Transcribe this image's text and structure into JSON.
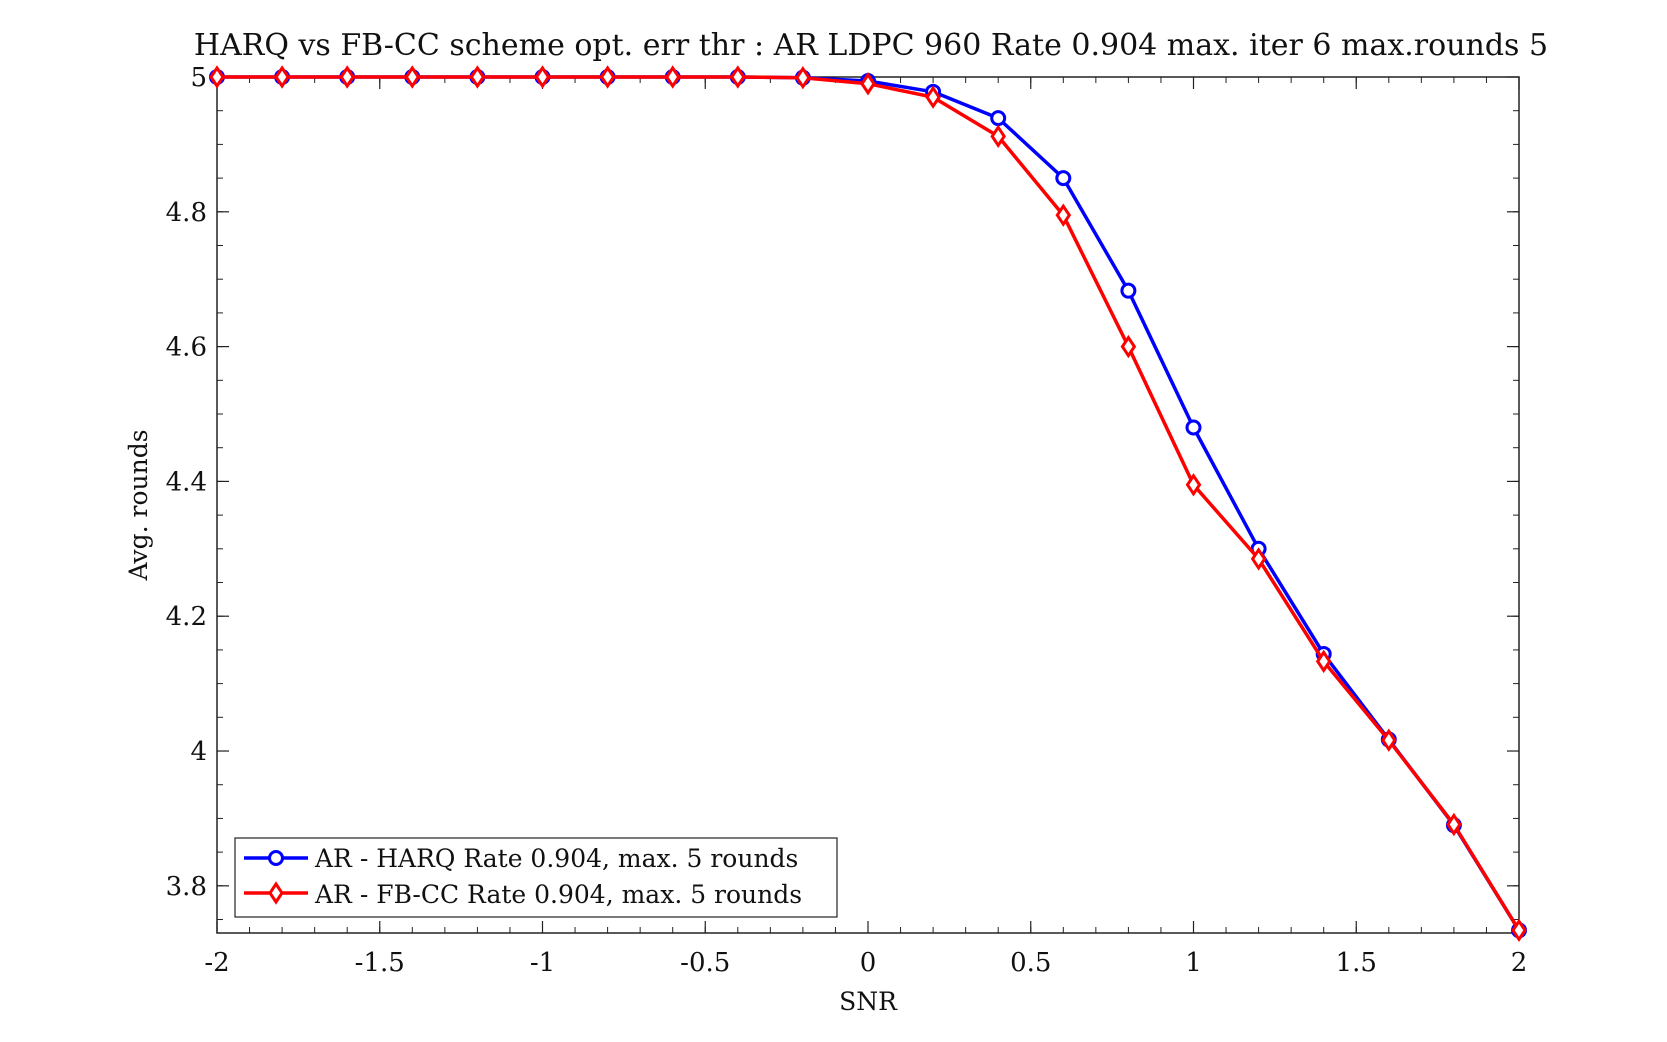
{
  "chart_data": {
    "type": "line",
    "title": "HARQ vs FB-CC scheme opt. err thr : AR LDPC 960 Rate 0.904 max. iter 6 max.rounds 5",
    "xlabel": "SNR",
    "ylabel": "Avg. rounds",
    "xlim": [
      -2,
      2
    ],
    "ylim": [
      3.73,
      5
    ],
    "x_ticks": [
      -2,
      -1.5,
      -1,
      -0.5,
      0,
      0.5,
      1,
      1.5,
      2
    ],
    "x_tick_labels": [
      "-2",
      "-1.5",
      "-1",
      "-0.5",
      "0",
      "0.5",
      "1",
      "1.5",
      "2"
    ],
    "y_ticks": [
      3.8,
      4,
      4.2,
      4.4,
      4.6,
      4.8,
      5
    ],
    "y_tick_labels": [
      "3.8",
      "4",
      "4.2",
      "4.4",
      "4.6",
      "4.8",
      "5"
    ],
    "grid": false,
    "legend_position": "bottom-left",
    "x": [
      -2,
      -1.8,
      -1.6,
      -1.4,
      -1.2,
      -1,
      -0.8,
      -0.6,
      -0.4,
      -0.2,
      0,
      0.2,
      0.4,
      0.6,
      0.8,
      1,
      1.2,
      1.4,
      1.6,
      1.8,
      2
    ],
    "series": [
      {
        "name": "AR - HARQ Rate 0.904, max. 5 rounds",
        "color": "#0000ff",
        "marker": "circle",
        "values": [
          5,
          5,
          5,
          5,
          5,
          5,
          5,
          5,
          5,
          4.999,
          4.994,
          4.978,
          4.939,
          4.85,
          4.683,
          4.48,
          4.3,
          4.144,
          4.017,
          3.89,
          3.734
        ]
      },
      {
        "name": "AR - FB-CC Rate 0.904, max. 5 rounds",
        "color": "#ff0000",
        "marker": "diamond",
        "values": [
          5,
          5,
          5,
          5,
          5,
          5,
          5,
          5,
          5,
          4.999,
          4.99,
          4.97,
          4.912,
          4.795,
          4.6,
          4.395,
          4.285,
          4.133,
          4.016,
          3.891,
          3.734
        ]
      }
    ]
  }
}
